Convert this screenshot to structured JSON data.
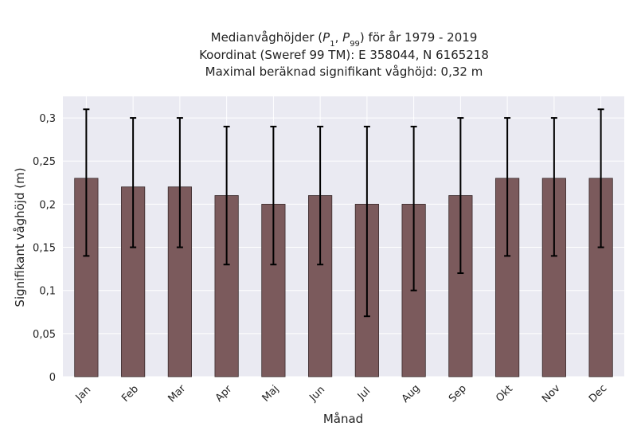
{
  "chart_data": {
    "type": "bar",
    "title_lines": [
      "Medianvåghöjder (P1, P99) för år 1979 - 2019",
      "Koordinat (Sweref 99 TM): E 358044, N 6165218",
      "Maximal beräknad signifikant våghöjd: 0,32 m"
    ],
    "xlabel": "Månad",
    "ylabel": "Signifikant våghöjd (m)",
    "categories": [
      "Jan",
      "Feb",
      "Mar",
      "Apr",
      "Maj",
      "Jun",
      "Jul",
      "Aug",
      "Sep",
      "Okt",
      "Nov",
      "Dec"
    ],
    "values": [
      0.23,
      0.22,
      0.22,
      0.21,
      0.2,
      0.21,
      0.2,
      0.2,
      0.21,
      0.23,
      0.23,
      0.23
    ],
    "error_low": [
      0.14,
      0.15,
      0.15,
      0.13,
      0.13,
      0.13,
      0.07,
      0.1,
      0.12,
      0.14,
      0.14,
      0.15
    ],
    "error_high": [
      0.31,
      0.3,
      0.3,
      0.29,
      0.29,
      0.29,
      0.29,
      0.29,
      0.3,
      0.3,
      0.3,
      0.31
    ],
    "ylim": [
      0,
      0.325
    ],
    "yticks": [
      0,
      0.05,
      0.1,
      0.15,
      0.2,
      0.25,
      0.3
    ],
    "ytick_labels": [
      "0",
      "0,05",
      "0,1",
      "0,15",
      "0,2",
      "0,25",
      "0,3"
    ],
    "grid": true,
    "colors": {
      "bar": "#7b5a5c",
      "bar_edge": "#3a2b2c",
      "plot_background": "#eaeaf2",
      "grid": "#ffffff",
      "error_bar": "#000000"
    }
  }
}
